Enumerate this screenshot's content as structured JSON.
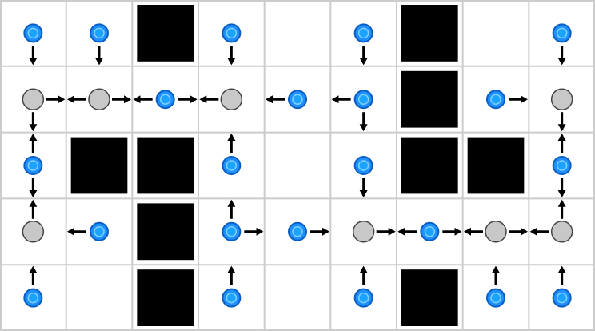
{
  "board": {
    "rows": 5,
    "cols": 9,
    "colors": {
      "background": "#ffffff",
      "grid_line": "#cccccc",
      "wall": "#000000",
      "agent_fill": "#1e90ff",
      "agent_ring": "#0a5ec2",
      "agent_core": "#1aa3ff",
      "node_fill": "#c8c8c8",
      "node_stroke": "#444444",
      "arrow": "#000000"
    },
    "walls": [
      {
        "r": 0,
        "c": 2
      },
      {
        "r": 0,
        "c": 6
      },
      {
        "r": 1,
        "c": 6
      },
      {
        "r": 2,
        "c": 1
      },
      {
        "r": 2,
        "c": 2
      },
      {
        "r": 2,
        "c": 6
      },
      {
        "r": 2,
        "c": 7
      },
      {
        "r": 3,
        "c": 2
      },
      {
        "r": 4,
        "c": 2
      },
      {
        "r": 4,
        "c": 6
      }
    ],
    "agents": [
      {
        "r": 0,
        "c": 0,
        "arrows": [
          "down"
        ]
      },
      {
        "r": 0,
        "c": 1,
        "arrows": [
          "down"
        ]
      },
      {
        "r": 0,
        "c": 3,
        "arrows": [
          "down"
        ]
      },
      {
        "r": 0,
        "c": 5,
        "arrows": [
          "down"
        ]
      },
      {
        "r": 0,
        "c": 8,
        "arrows": [
          "down"
        ]
      },
      {
        "r": 1,
        "c": 2,
        "arrows": [
          "left",
          "right"
        ]
      },
      {
        "r": 1,
        "c": 4,
        "arrows": [
          "left"
        ]
      },
      {
        "r": 1,
        "c": 5,
        "arrows": [
          "left",
          "down"
        ]
      },
      {
        "r": 1,
        "c": 7,
        "arrows": [
          "right"
        ]
      },
      {
        "r": 2,
        "c": 0,
        "arrows": [
          "up",
          "down"
        ]
      },
      {
        "r": 2,
        "c": 3,
        "arrows": [
          "up"
        ]
      },
      {
        "r": 2,
        "c": 5,
        "arrows": [
          "down"
        ]
      },
      {
        "r": 2,
        "c": 8,
        "arrows": [
          "up",
          "down"
        ]
      },
      {
        "r": 3,
        "c": 1,
        "arrows": [
          "left"
        ]
      },
      {
        "r": 3,
        "c": 3,
        "arrows": [
          "up",
          "right"
        ]
      },
      {
        "r": 3,
        "c": 4,
        "arrows": [
          "right"
        ]
      },
      {
        "r": 3,
        "c": 6,
        "arrows": [
          "left",
          "right"
        ]
      },
      {
        "r": 4,
        "c": 0,
        "arrows": [
          "up"
        ]
      },
      {
        "r": 4,
        "c": 3,
        "arrows": [
          "up"
        ]
      },
      {
        "r": 4,
        "c": 5,
        "arrows": [
          "up"
        ]
      },
      {
        "r": 4,
        "c": 7,
        "arrows": [
          "up"
        ]
      },
      {
        "r": 4,
        "c": 8,
        "arrows": [
          "up"
        ]
      }
    ],
    "nodes": [
      {
        "r": 1,
        "c": 0,
        "arrows": [
          "right",
          "down"
        ]
      },
      {
        "r": 1,
        "c": 1,
        "arrows": [
          "left",
          "right"
        ]
      },
      {
        "r": 1,
        "c": 3,
        "arrows": [
          "left"
        ]
      },
      {
        "r": 1,
        "c": 8,
        "arrows": [
          "down"
        ]
      },
      {
        "r": 3,
        "c": 0,
        "arrows": [
          "up"
        ]
      },
      {
        "r": 3,
        "c": 5,
        "arrows": [
          "right"
        ]
      },
      {
        "r": 3,
        "c": 7,
        "arrows": [
          "left",
          "right"
        ]
      },
      {
        "r": 3,
        "c": 8,
        "arrows": [
          "left",
          "up"
        ]
      }
    ]
  }
}
